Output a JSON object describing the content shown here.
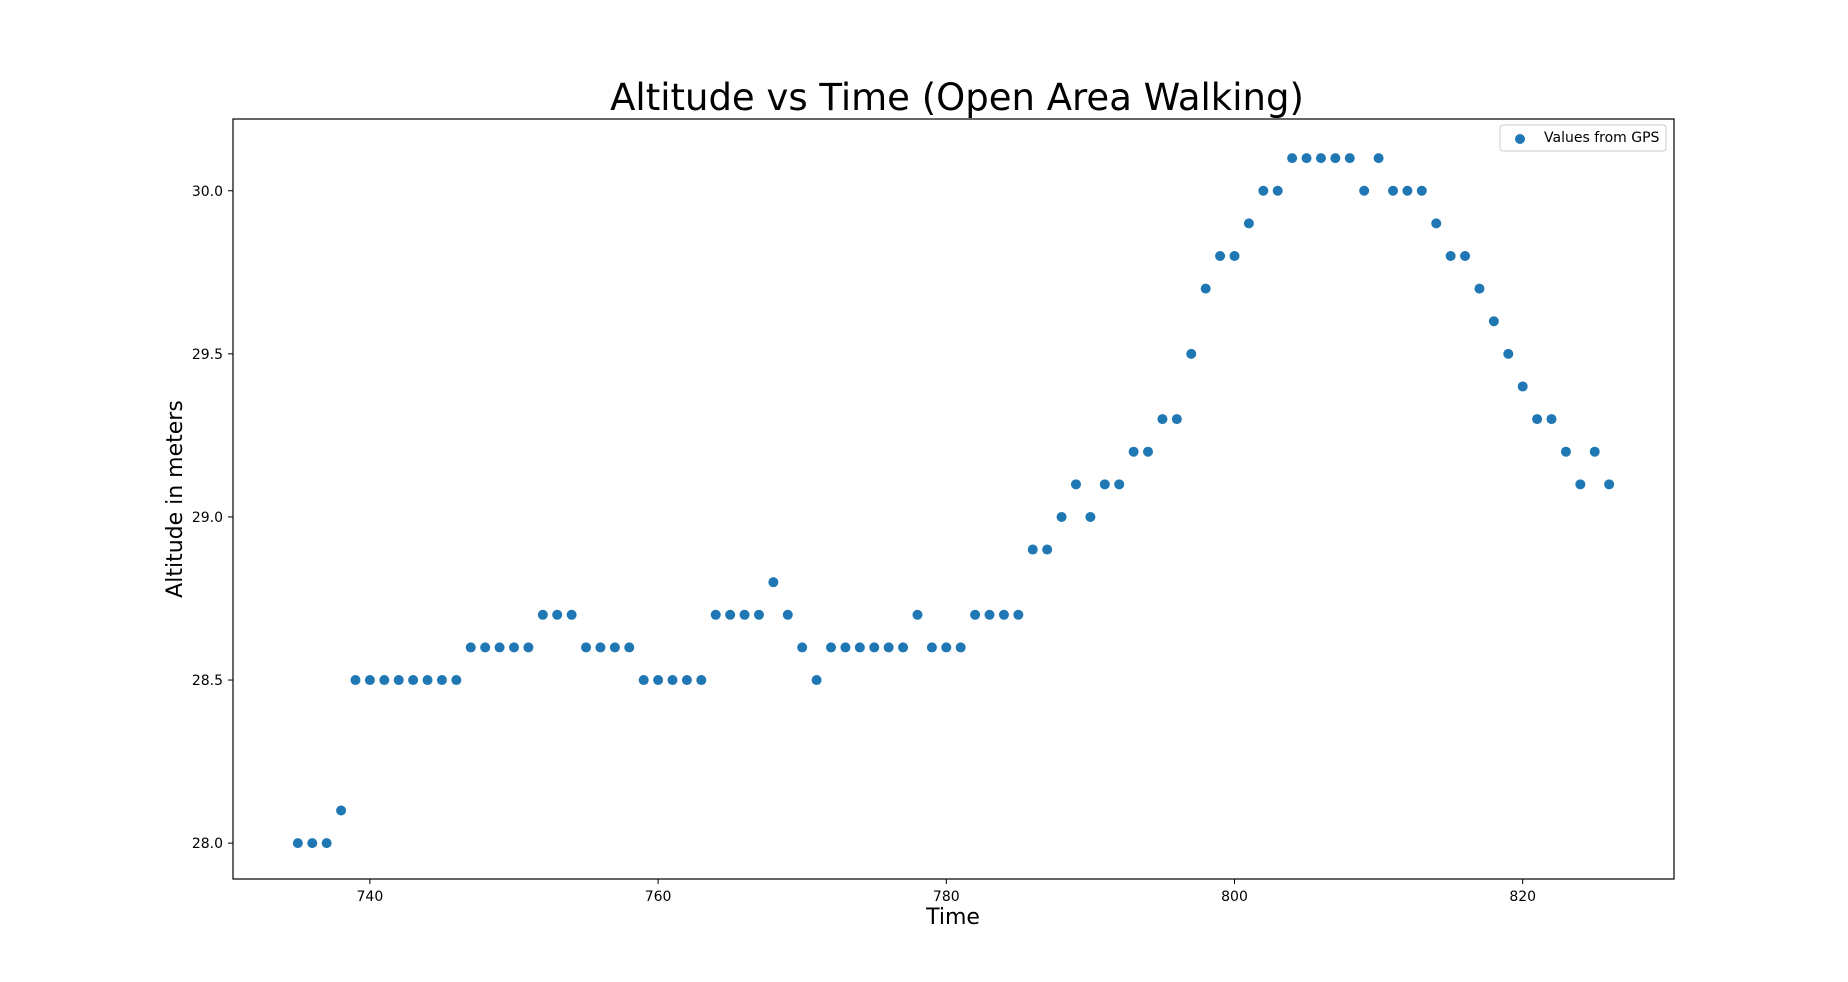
{
  "chart_data": {
    "type": "scatter",
    "title": "Altitude vs Time (Open Area Walking)",
    "xlabel": "Time",
    "ylabel": "Altitude in meters",
    "xlim": [
      730.5,
      830.5
    ],
    "ylim": [
      27.89,
      30.22
    ],
    "xticks": [
      740,
      760,
      780,
      800,
      820
    ],
    "yticks": [
      28.0,
      28.5,
      29.0,
      29.5,
      30.0
    ],
    "xtick_labels": [
      "740",
      "760",
      "780",
      "800",
      "820"
    ],
    "ytick_labels": [
      "28.0",
      "28.5",
      "29.0",
      "29.5",
      "30.0"
    ],
    "grid": false,
    "legend_position": "top-right",
    "series": [
      {
        "name": "Values from GPS",
        "color": "#1f77b4",
        "marker": "circle",
        "points": [
          [
            735,
            28.0
          ],
          [
            736,
            28.0
          ],
          [
            737,
            28.0
          ],
          [
            738,
            28.1
          ],
          [
            739,
            28.5
          ],
          [
            740,
            28.5
          ],
          [
            741,
            28.5
          ],
          [
            742,
            28.5
          ],
          [
            743,
            28.5
          ],
          [
            744,
            28.5
          ],
          [
            745,
            28.5
          ],
          [
            746,
            28.5
          ],
          [
            747,
            28.6
          ],
          [
            748,
            28.6
          ],
          [
            749,
            28.6
          ],
          [
            750,
            28.6
          ],
          [
            751,
            28.6
          ],
          [
            752,
            28.7
          ],
          [
            753,
            28.7
          ],
          [
            754,
            28.7
          ],
          [
            755,
            28.6
          ],
          [
            756,
            28.6
          ],
          [
            757,
            28.6
          ],
          [
            758,
            28.6
          ],
          [
            759,
            28.5
          ],
          [
            760,
            28.5
          ],
          [
            761,
            28.5
          ],
          [
            762,
            28.5
          ],
          [
            763,
            28.5
          ],
          [
            764,
            28.7
          ],
          [
            765,
            28.7
          ],
          [
            766,
            28.7
          ],
          [
            767,
            28.7
          ],
          [
            768,
            28.8
          ],
          [
            769,
            28.7
          ],
          [
            770,
            28.6
          ],
          [
            771,
            28.5
          ],
          [
            772,
            28.6
          ],
          [
            773,
            28.6
          ],
          [
            774,
            28.6
          ],
          [
            775,
            28.6
          ],
          [
            776,
            28.6
          ],
          [
            777,
            28.6
          ],
          [
            778,
            28.7
          ],
          [
            779,
            28.6
          ],
          [
            780,
            28.6
          ],
          [
            781,
            28.6
          ],
          [
            782,
            28.7
          ],
          [
            783,
            28.7
          ],
          [
            784,
            28.7
          ],
          [
            785,
            28.7
          ],
          [
            786,
            28.9
          ],
          [
            787,
            28.9
          ],
          [
            788,
            29.0
          ],
          [
            789,
            29.1
          ],
          [
            790,
            29.0
          ],
          [
            791,
            29.1
          ],
          [
            792,
            29.1
          ],
          [
            793,
            29.2
          ],
          [
            794,
            29.2
          ],
          [
            795,
            29.3
          ],
          [
            796,
            29.3
          ],
          [
            797,
            29.5
          ],
          [
            798,
            29.7
          ],
          [
            799,
            29.8
          ],
          [
            800,
            29.8
          ],
          [
            801,
            29.9
          ],
          [
            802,
            30.0
          ],
          [
            803,
            30.0
          ],
          [
            804,
            30.1
          ],
          [
            805,
            30.1
          ],
          [
            806,
            30.1
          ],
          [
            807,
            30.1
          ],
          [
            808,
            30.1
          ],
          [
            809,
            30.0
          ],
          [
            810,
            30.1
          ],
          [
            811,
            30.0
          ],
          [
            812,
            30.0
          ],
          [
            813,
            30.0
          ],
          [
            814,
            29.9
          ],
          [
            815,
            29.8
          ],
          [
            816,
            29.8
          ],
          [
            817,
            29.7
          ],
          [
            818,
            29.6
          ],
          [
            819,
            29.5
          ],
          [
            820,
            29.4
          ],
          [
            821,
            29.3
          ],
          [
            822,
            29.3
          ],
          [
            823,
            29.2
          ],
          [
            824,
            29.1
          ],
          [
            825,
            29.2
          ],
          [
            826,
            29.1
          ]
        ]
      }
    ]
  }
}
